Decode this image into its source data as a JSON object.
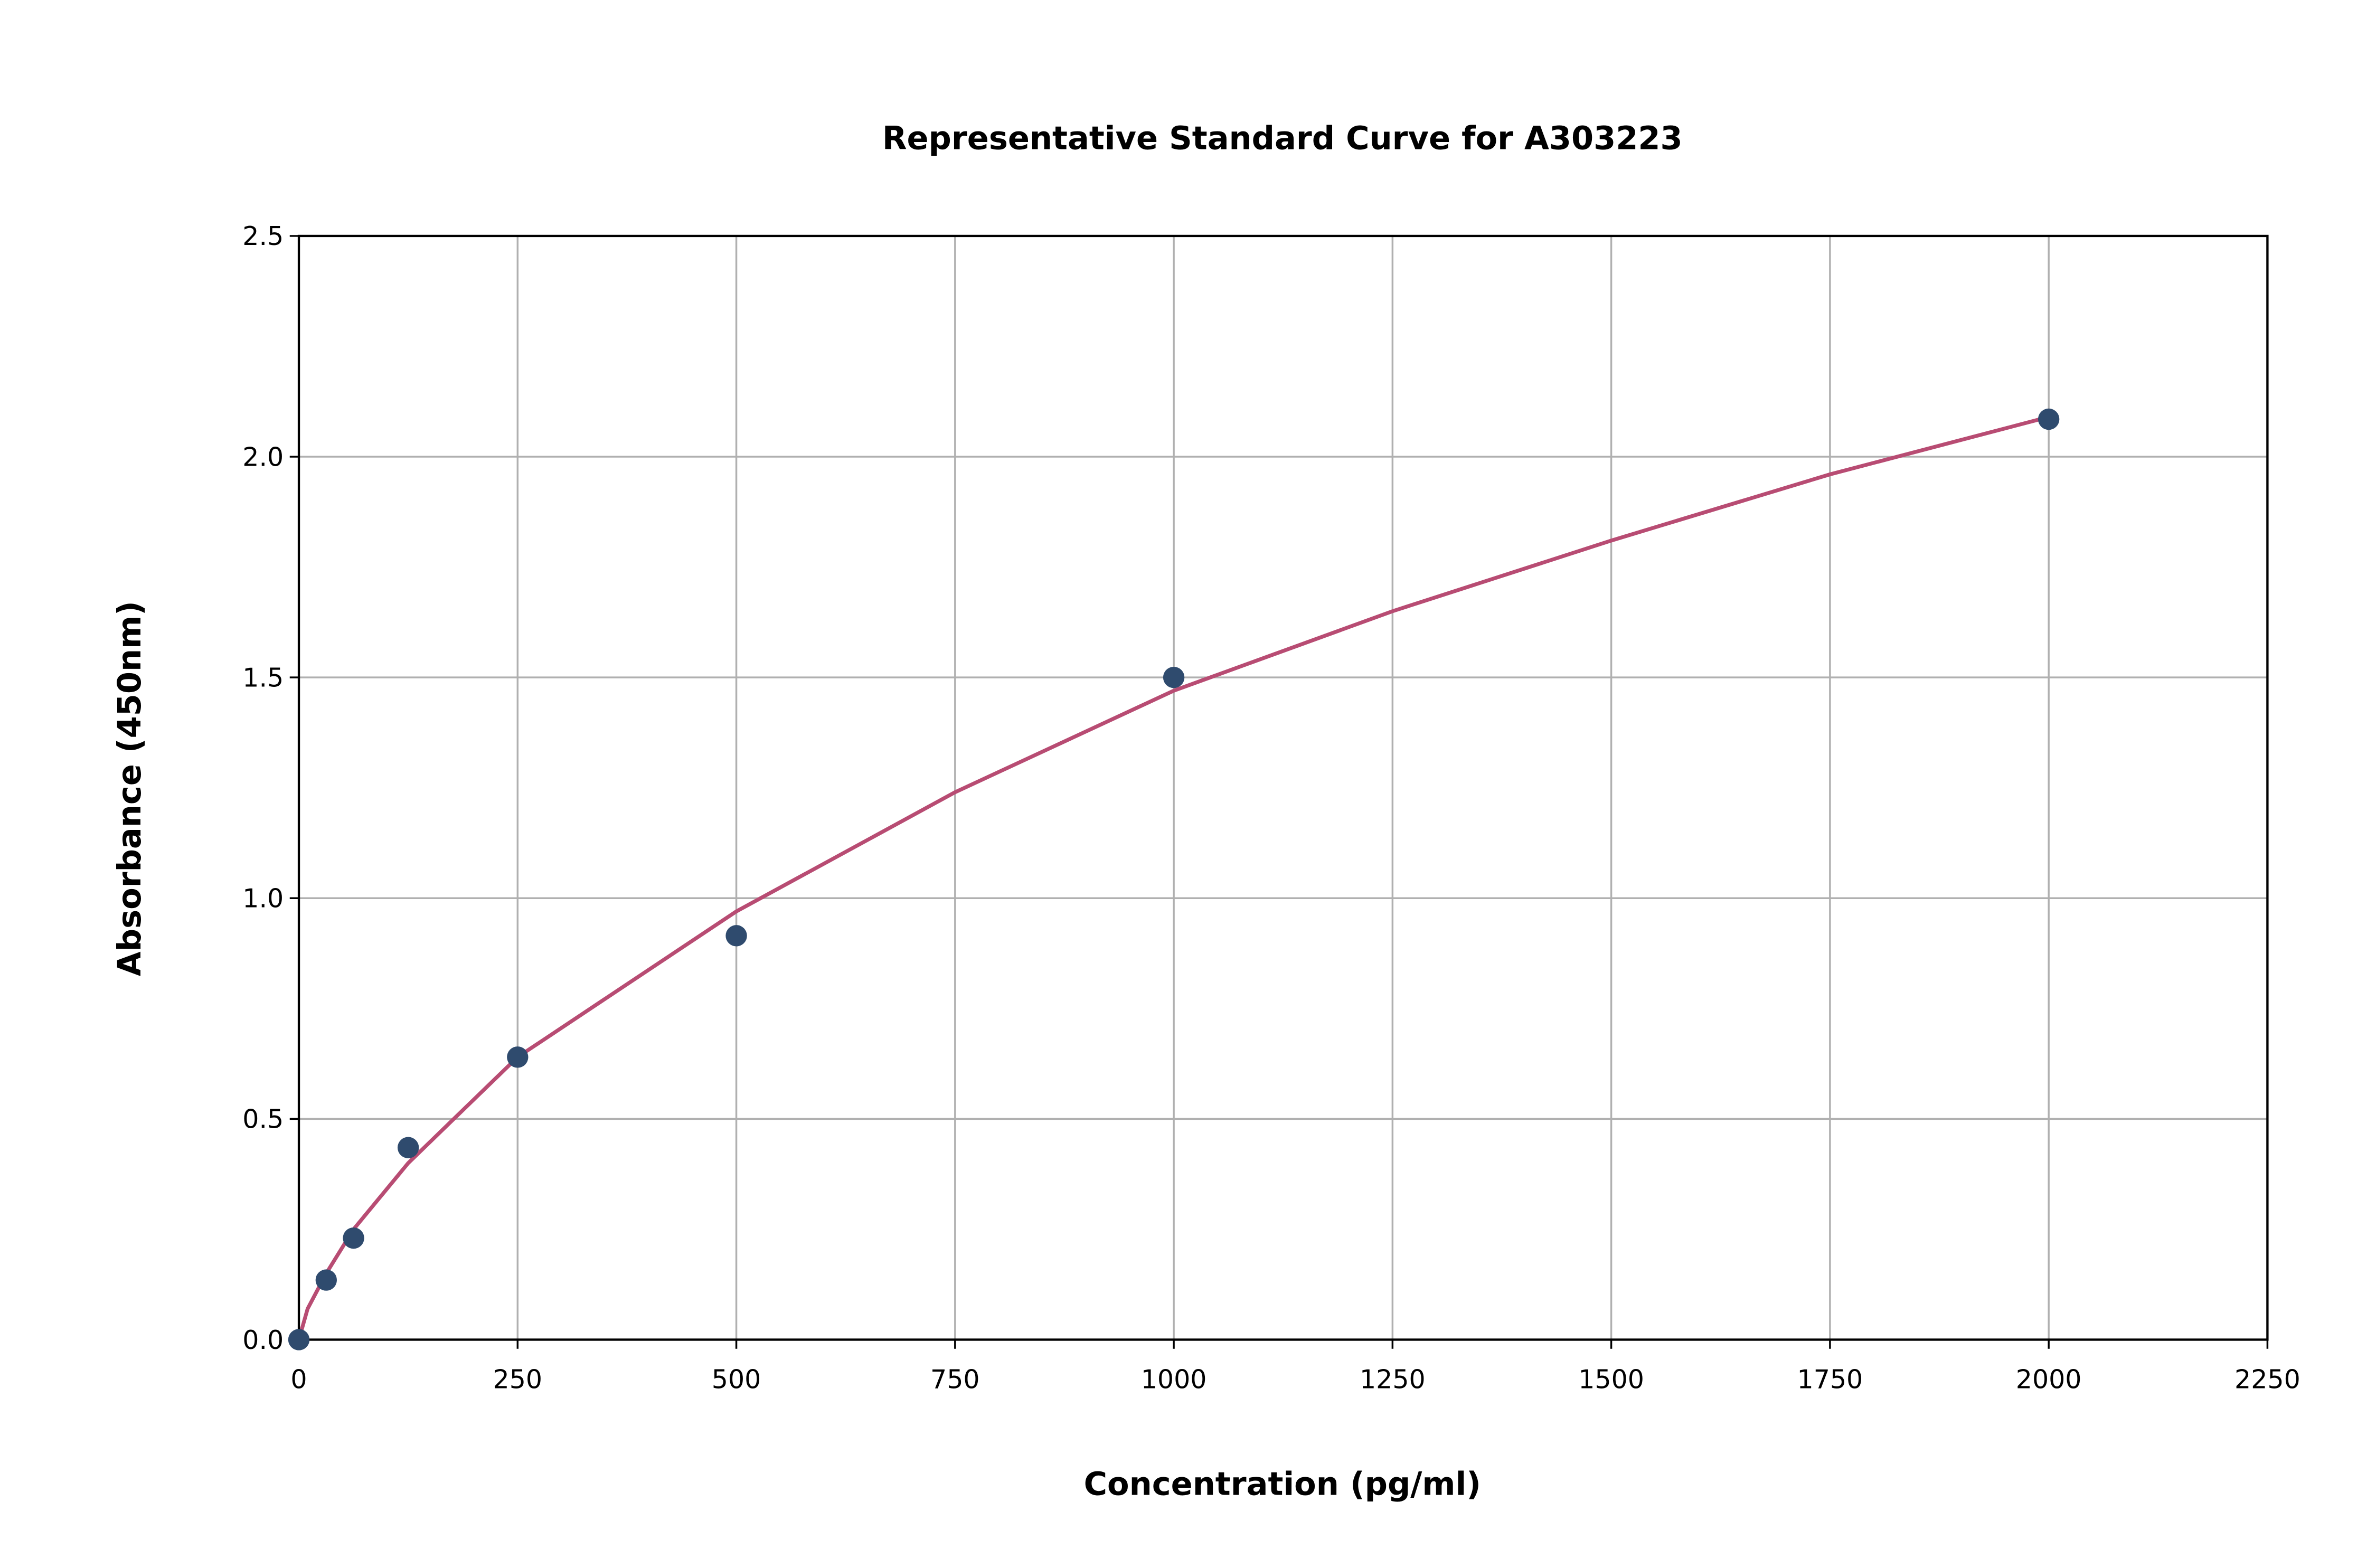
{
  "chart_data": {
    "type": "scatter",
    "title": "Representative Standard Curve for A303223",
    "x_label": "Concentration (pg/ml)",
    "y_label": "Absorbance (450nm)",
    "series": [
      {
        "style": "markers",
        "color": "#2f4b6e",
        "x": [
          0,
          31.25,
          62.5,
          125,
          250,
          500,
          1000,
          2000
        ],
        "values": [
          0.0,
          0.135,
          0.23,
          0.435,
          0.64,
          0.915,
          1.5,
          2.085
        ]
      },
      {
        "style": "line",
        "color": "#b84c73",
        "x": [
          0,
          10,
          31.25,
          62.5,
          125,
          250,
          500,
          750,
          1000,
          1250,
          1500,
          1750,
          2000
        ],
        "values": [
          0.0,
          0.07,
          0.15,
          0.25,
          0.4,
          0.64,
          0.97,
          1.24,
          1.47,
          1.65,
          1.81,
          1.96,
          2.09
        ]
      }
    ],
    "xlim": [
      0,
      2250
    ],
    "xticks": [
      0,
      250,
      500,
      750,
      1000,
      1250,
      1500,
      1750,
      2000,
      2250
    ],
    "ylim": [
      0,
      2.5
    ],
    "yticks": [
      {
        "value": 0,
        "label": "0.0"
      },
      0.5,
      {
        "value": 1,
        "label": "1.0"
      },
      1.5,
      {
        "value": 2,
        "label": "2.0"
      },
      2.5
    ],
    "grid": true
  }
}
